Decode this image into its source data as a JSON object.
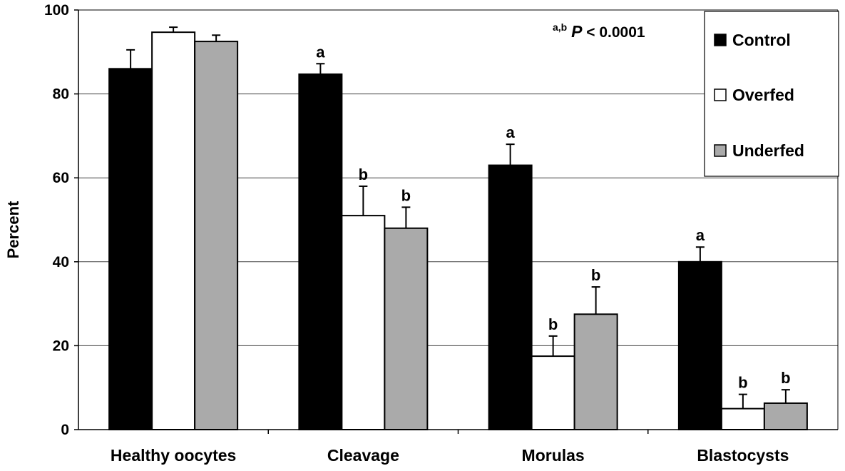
{
  "chart_data": {
    "type": "bar",
    "title": "",
    "xlabel": "",
    "ylabel": "Percent",
    "ylim": [
      0,
      100
    ],
    "yticks": [
      0,
      20,
      40,
      60,
      80,
      100
    ],
    "grid": true,
    "legend_position": "top-right",
    "annotation": {
      "superscript": "a,b",
      "italic": "P",
      "rest": " < 0.0001"
    },
    "categories": [
      "Healthy oocytes",
      "Cleavage",
      "Morulas",
      "Blastocysts"
    ],
    "series": [
      {
        "name": "Control",
        "color": "#000000",
        "values": [
          86,
          84.7,
          63,
          40
        ],
        "errors": [
          4.5,
          2.5,
          5,
          3.5
        ],
        "labels": [
          "",
          "a",
          "a",
          "a"
        ]
      },
      {
        "name": "Overfed",
        "color": "#ffffff",
        "values": [
          94.7,
          51,
          17.5,
          5
        ],
        "errors": [
          1.2,
          7,
          4.8,
          3.4
        ],
        "labels": [
          "",
          "b",
          "b",
          "b"
        ]
      },
      {
        "name": "Underfed",
        "color": "#aaaaaa",
        "values": [
          92.5,
          48,
          27.5,
          6.3
        ],
        "errors": [
          1.5,
          5,
          6.5,
          3.2
        ],
        "labels": [
          "",
          "b",
          "b",
          "b"
        ]
      }
    ]
  }
}
